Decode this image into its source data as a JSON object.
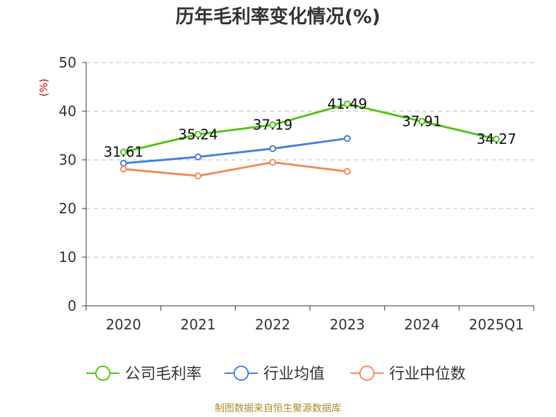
{
  "title": "历年毛利率变化情况(%)",
  "unit_label": "(%)",
  "source": "制图数据来自恒生聚源数据库",
  "colors": {
    "company": "#52c41a",
    "industry_avg": "#4a7fd9",
    "industry_median": "#f08c5a",
    "grid": "#bbbbbb",
    "axis": "#333333",
    "unit": "#cc0000",
    "source": "#b08a2c"
  },
  "chart_data": {
    "type": "line",
    "title": "历年毛利率变化情况(%)",
    "ylabel": "(%)",
    "ylim": [
      0,
      50
    ],
    "yticks": [
      0,
      10,
      20,
      30,
      40,
      50
    ],
    "grid": true,
    "legend_position": "bottom",
    "categories": [
      "2020",
      "2021",
      "2022",
      "2023",
      "2024",
      "2025Q1"
    ],
    "series": [
      {
        "name": "公司毛利率",
        "color": "#52c41a",
        "values": [
          31.61,
          35.24,
          37.19,
          41.49,
          37.91,
          34.27
        ],
        "labels": [
          "31.61",
          "35.24",
          "37.19",
          "41.49",
          "37.91",
          "34.27"
        ]
      },
      {
        "name": "行业均值",
        "color": "#4a7fd9",
        "values": [
          29.3,
          30.6,
          32.3,
          34.4,
          null,
          null
        ]
      },
      {
        "name": "行业中位数",
        "color": "#f08c5a",
        "values": [
          28.1,
          26.7,
          29.5,
          27.6,
          null,
          null
        ]
      }
    ]
  }
}
